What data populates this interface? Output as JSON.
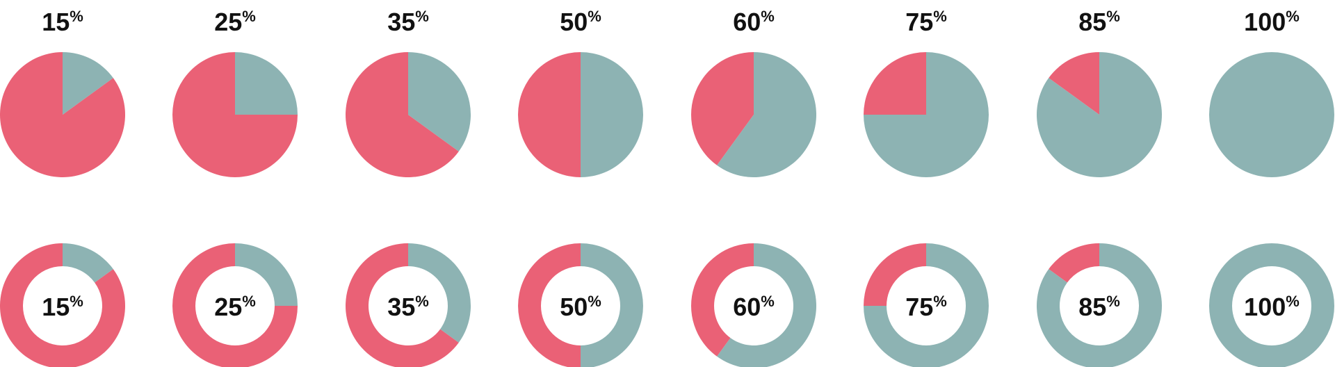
{
  "chart_data": [
    {
      "type": "pie",
      "style": "full",
      "items": [
        {
          "value": 15,
          "label": "15%"
        },
        {
          "value": 25,
          "label": "25%"
        },
        {
          "value": 35,
          "label": "35%"
        },
        {
          "value": 50,
          "label": "50%"
        },
        {
          "value": 60,
          "label": "60%"
        },
        {
          "value": 75,
          "label": "75%"
        },
        {
          "value": 85,
          "label": "85%"
        },
        {
          "value": 100,
          "label": "100%"
        }
      ]
    },
    {
      "type": "pie",
      "style": "donut",
      "items": [
        {
          "value": 15,
          "label": "15%"
        },
        {
          "value": 25,
          "label": "25%"
        },
        {
          "value": 35,
          "label": "35%"
        },
        {
          "value": 50,
          "label": "50%"
        },
        {
          "value": 60,
          "label": "60%"
        },
        {
          "value": 75,
          "label": "75%"
        },
        {
          "value": 85,
          "label": "85%"
        },
        {
          "value": 100,
          "label": "100%"
        }
      ]
    }
  ],
  "colors": {
    "percentage_fill": "#8DB3B3",
    "remainder_fill": "#EA6176",
    "label_text": "#111111"
  }
}
